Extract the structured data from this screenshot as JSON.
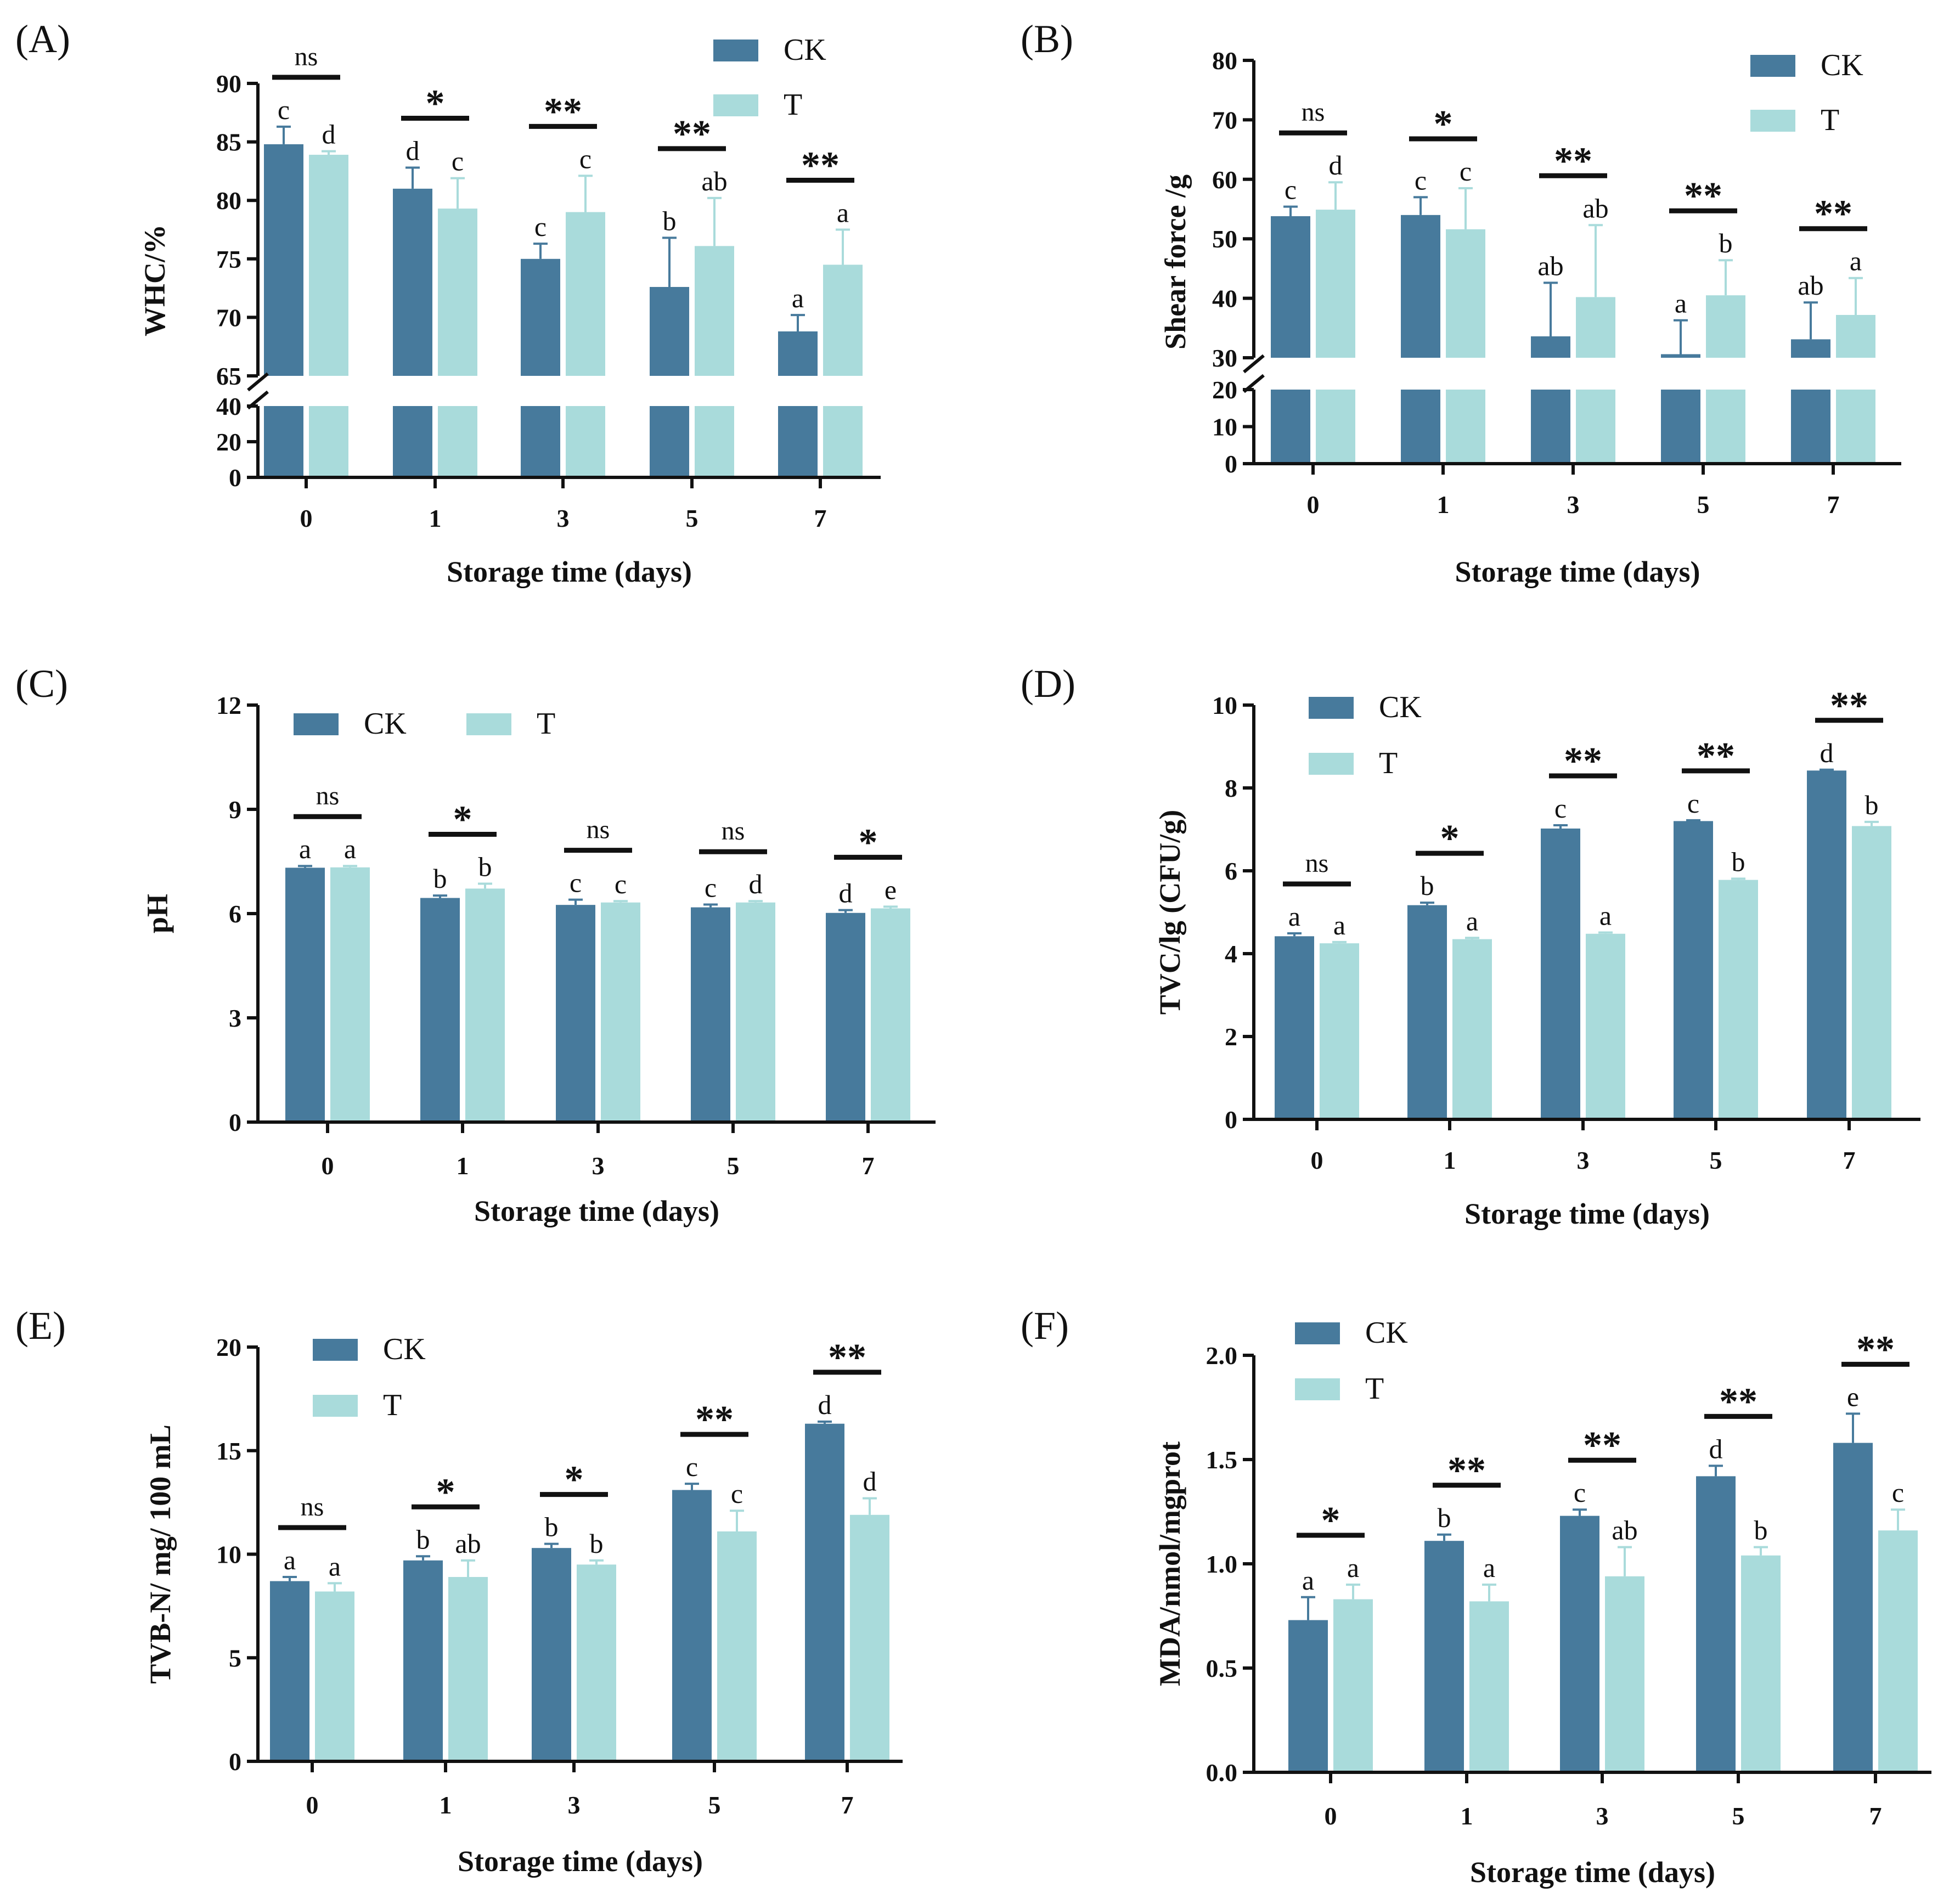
{
  "colors": {
    "CK": "#477A9C",
    "T": "#A9DBDB",
    "axis": "#111111"
  },
  "chart_data": [
    {
      "id": "A",
      "panel": "(A)",
      "type": "bar",
      "categories": [
        "0",
        "1",
        "3",
        "5",
        "7"
      ],
      "series": [
        {
          "name": "CK",
          "values": [
            84.8,
            81.0,
            75.0,
            72.6,
            68.8
          ],
          "errors": [
            1.5,
            1.8,
            1.3,
            4.2,
            1.4
          ],
          "letters": [
            "c",
            "d",
            "c",
            "b",
            "a"
          ]
        },
        {
          "name": "T",
          "values": [
            83.9,
            79.3,
            79.0,
            76.1,
            74.5
          ],
          "errors": [
            0.3,
            2.6,
            3.1,
            4.1,
            3.0
          ],
          "letters": [
            "d",
            "c",
            "c",
            "ab",
            "a"
          ]
        }
      ],
      "significance": [
        "ns",
        "*",
        "**",
        "**",
        "**"
      ],
      "xlabel": "Storage time (days)",
      "ylabel": "WHC/%",
      "lower_ticks": [
        0,
        20,
        40
      ],
      "upper_ticks": [
        65,
        70,
        75,
        80,
        85,
        90
      ],
      "lower_range": [
        0,
        40
      ],
      "upper_range": [
        65,
        90
      ]
    },
    {
      "id": "B",
      "panel": "(B)",
      "type": "bar",
      "categories": [
        "0",
        "1",
        "3",
        "5",
        "7"
      ],
      "series": [
        {
          "name": "CK",
          "values": [
            53.8,
            54.0,
            33.6,
            30.6,
            33.1
          ],
          "errors": [
            1.6,
            3.0,
            9.0,
            5.7,
            6.2
          ],
          "letters": [
            "c",
            "c",
            "ab",
            "a",
            "ab"
          ]
        },
        {
          "name": "T",
          "values": [
            54.9,
            51.6,
            40.2,
            40.5,
            37.2
          ],
          "errors": [
            4.6,
            6.9,
            12.1,
            5.9,
            6.2
          ],
          "letters": [
            "d",
            "c",
            "ab",
            "b",
            "a"
          ]
        }
      ],
      "significance": [
        "ns",
        "*",
        "**",
        "**",
        "**"
      ],
      "xlabel": "Storage time (days)",
      "ylabel": "Shear force /g",
      "lower_ticks": [
        0,
        10,
        20
      ],
      "upper_ticks": [
        30,
        40,
        50,
        60,
        70,
        80
      ],
      "lower_range": [
        0,
        20
      ],
      "upper_range": [
        30,
        80
      ]
    },
    {
      "id": "C",
      "panel": "(C)",
      "type": "bar",
      "categories": [
        "0",
        "1",
        "3",
        "5",
        "7"
      ],
      "series": [
        {
          "name": "CK",
          "values": [
            7.32,
            6.45,
            6.25,
            6.18,
            6.02
          ],
          "errors": [
            0.05,
            0.07,
            0.15,
            0.08,
            0.08
          ],
          "letters": [
            "a",
            "b",
            "c",
            "c",
            "d"
          ]
        },
        {
          "name": "T",
          "values": [
            7.33,
            6.72,
            6.32,
            6.32,
            6.15
          ],
          "errors": [
            0.04,
            0.14,
            0.04,
            0.04,
            0.05
          ],
          "letters": [
            "a",
            "b",
            "c",
            "d",
            "e"
          ]
        }
      ],
      "significance": [
        "ns",
        "*",
        "ns",
        "ns",
        "*"
      ],
      "xlabel": "Storage time (days)",
      "ylabel": "pH",
      "ylim": [
        0,
        12
      ],
      "ticks": [
        0,
        3,
        6,
        9,
        12
      ]
    },
    {
      "id": "D",
      "panel": "(D)",
      "type": "bar",
      "categories": [
        "0",
        "1",
        "3",
        "5",
        "7"
      ],
      "series": [
        {
          "name": "CK",
          "values": [
            4.42,
            5.17,
            7.02,
            7.2,
            8.42
          ],
          "errors": [
            0.07,
            0.06,
            0.08,
            0.02,
            0.02
          ],
          "letters": [
            "a",
            "b",
            "c",
            "c",
            "d"
          ]
        },
        {
          "name": "T",
          "values": [
            4.25,
            4.35,
            4.48,
            5.78,
            7.08
          ],
          "errors": [
            0.03,
            0.03,
            0.03,
            0.03,
            0.1
          ],
          "letters": [
            "a",
            "a",
            "a",
            "b",
            "b"
          ]
        }
      ],
      "significance": [
        "ns",
        "*",
        "**",
        "**",
        "**"
      ],
      "xlabel": "Storage time (days)",
      "ylabel": "TVC/lg (CFU/g)",
      "ylim": [
        0,
        10
      ],
      "ticks": [
        0,
        2,
        4,
        6,
        8,
        10
      ]
    },
    {
      "id": "E",
      "panel": "(E)",
      "type": "bar",
      "categories": [
        "0",
        "1",
        "3",
        "5",
        "7"
      ],
      "series": [
        {
          "name": "CK",
          "values": [
            8.7,
            9.7,
            10.3,
            13.1,
            16.3
          ],
          "errors": [
            0.2,
            0.2,
            0.2,
            0.3,
            0.1
          ],
          "letters": [
            "a",
            "b",
            "b",
            "c",
            "d"
          ]
        },
        {
          "name": "T",
          "values": [
            8.2,
            8.9,
            9.5,
            11.1,
            11.9
          ],
          "errors": [
            0.4,
            0.8,
            0.2,
            1.0,
            0.8
          ],
          "letters": [
            "a",
            "ab",
            "b",
            "c",
            "d"
          ]
        }
      ],
      "significance": [
        "ns",
        "*",
        "*",
        "**",
        "**"
      ],
      "xlabel": "Storage time (days)",
      "ylabel": "TVB-N/ mg/ 100 mL",
      "ylim": [
        0,
        20
      ],
      "ticks": [
        0,
        5,
        10,
        15,
        20
      ]
    },
    {
      "id": "F",
      "panel": "(F)",
      "type": "bar",
      "categories": [
        "0",
        "1",
        "3",
        "5",
        "7"
      ],
      "series": [
        {
          "name": "CK",
          "values": [
            0.73,
            1.11,
            1.23,
            1.42,
            1.58
          ],
          "errors": [
            0.11,
            0.03,
            0.03,
            0.05,
            0.14
          ],
          "letters": [
            "a",
            "b",
            "c",
            "d",
            "e"
          ]
        },
        {
          "name": "T",
          "values": [
            0.83,
            0.82,
            0.94,
            1.04,
            1.16
          ],
          "errors": [
            0.07,
            0.08,
            0.14,
            0.04,
            0.1
          ],
          "letters": [
            "a",
            "a",
            "ab",
            "b",
            "c"
          ]
        }
      ],
      "significance": [
        "*",
        "**",
        "**",
        "**",
        "**"
      ],
      "xlabel": "Storage time (days)",
      "ylabel": "MDA/nmol/mgprot",
      "ylim": [
        0,
        2
      ],
      "ticks": [
        0.0,
        0.5,
        1.0,
        1.5,
        2.0
      ],
      "tick_decimals": 1
    }
  ]
}
